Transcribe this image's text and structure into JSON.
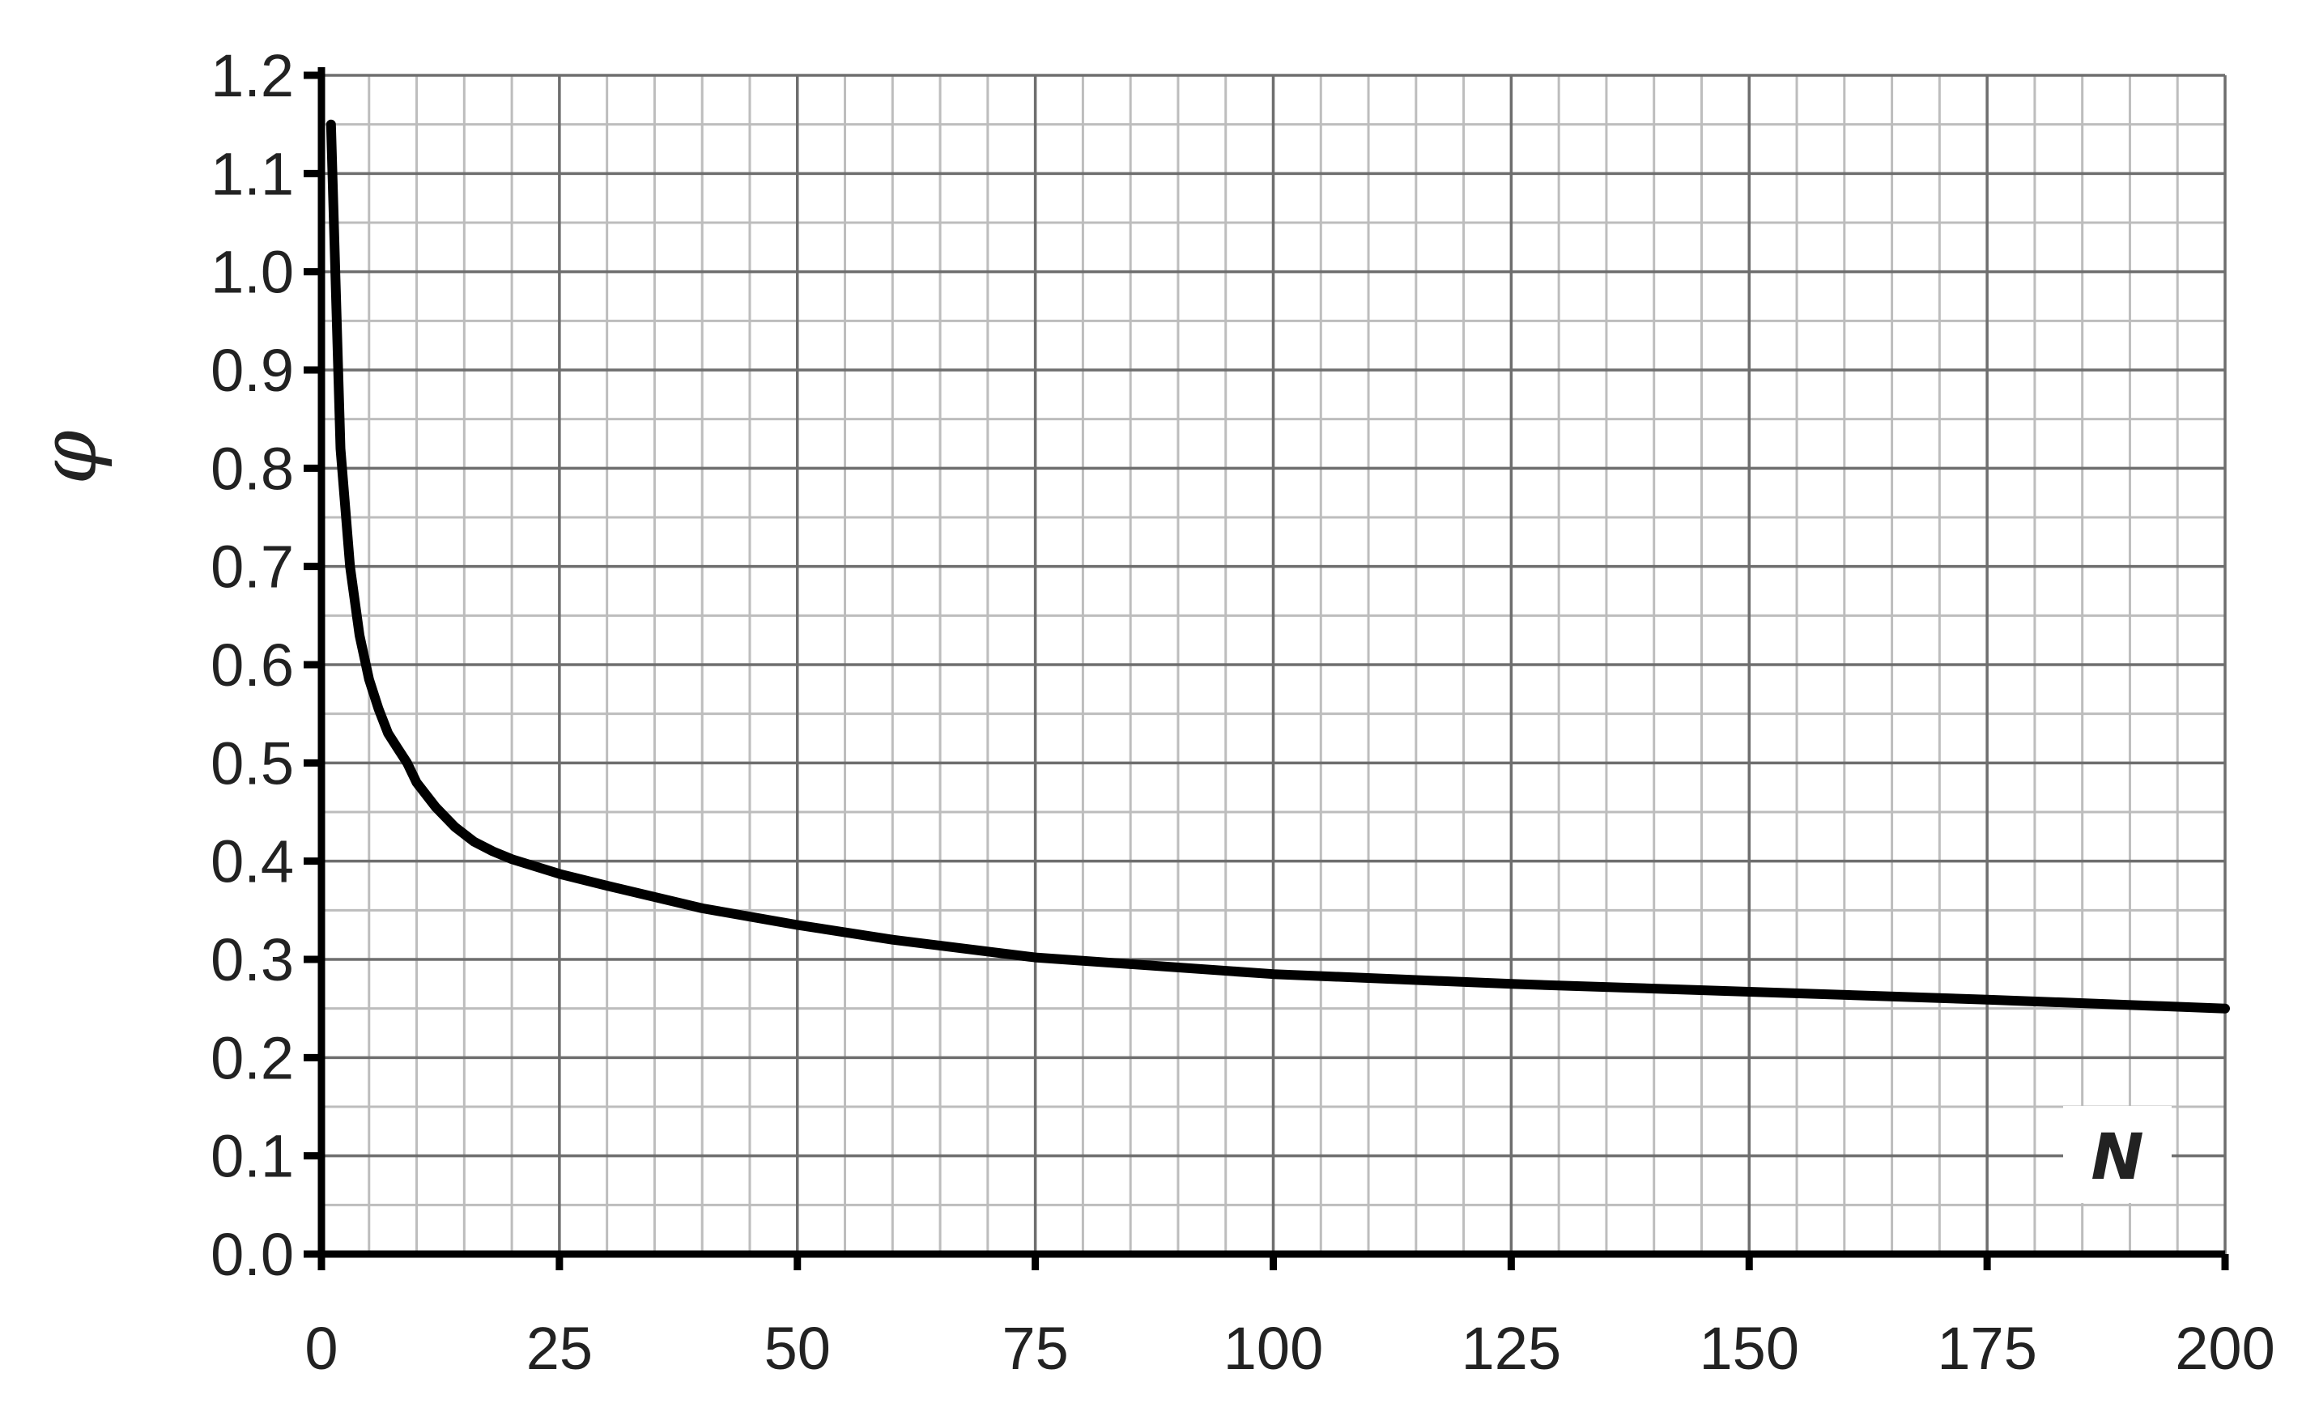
{
  "chart_data": {
    "type": "line",
    "title": "",
    "xlabel": "N",
    "ylabel": "φ",
    "xlim": [
      0,
      200
    ],
    "ylim": [
      0.0,
      1.2
    ],
    "grid": true,
    "minor_grid": true,
    "legend": "none",
    "x_ticks": [
      0,
      25,
      50,
      75,
      100,
      125,
      150,
      175,
      200
    ],
    "x_tick_labels": [
      "0",
      "25",
      "50",
      "75",
      "100",
      "125",
      "150",
      "175",
      "200"
    ],
    "y_ticks": [
      0.0,
      0.1,
      0.2,
      0.3,
      0.4,
      0.5,
      0.6,
      0.7,
      0.8,
      0.9,
      1.0,
      1.1,
      1.2
    ],
    "y_tick_labels": [
      "0.0",
      "0.1",
      "0.2",
      "0.3",
      "0.4",
      "0.5",
      "0.6",
      "0.7",
      "0.8",
      "0.9",
      "1.0",
      "1.1",
      "1.2"
    ],
    "colors": {
      "line": "#000000",
      "axis": "#000000",
      "major_grid": "#6e6e6e",
      "minor_grid": "#bdbdbd"
    },
    "series": [
      {
        "x": [
          1,
          2,
          3,
          4,
          5,
          6,
          7,
          8,
          9,
          10,
          12,
          14,
          16,
          18,
          20,
          25,
          30,
          40,
          50,
          60,
          75,
          100,
          125,
          150,
          175,
          200
        ],
        "y": [
          1.15,
          0.82,
          0.7,
          0.63,
          0.585,
          0.555,
          0.53,
          0.515,
          0.5,
          0.48,
          0.455,
          0.435,
          0.42,
          0.41,
          0.402,
          0.387,
          0.375,
          0.352,
          0.335,
          0.32,
          0.302,
          0.285,
          0.275,
          0.267,
          0.259,
          0.25
        ]
      }
    ]
  }
}
